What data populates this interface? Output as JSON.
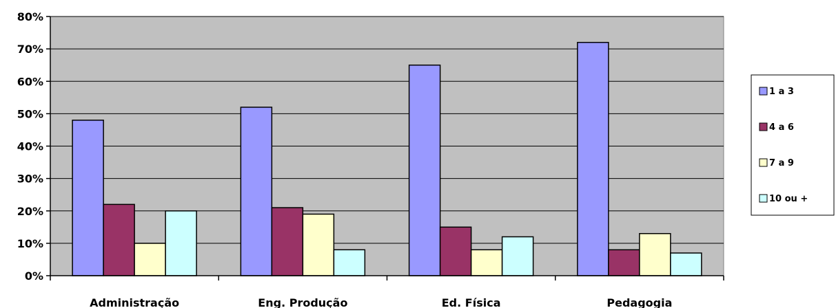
{
  "chart_data": {
    "type": "bar",
    "categories": [
      "Administração",
      "Eng. Produção",
      "Ed. Física",
      "Pedagogia"
    ],
    "series": [
      {
        "name": "1 a 3",
        "color": "#9999ff",
        "values": [
          48,
          52,
          65,
          72
        ]
      },
      {
        "name": "4 a 6",
        "color": "#993366",
        "values": [
          22,
          21,
          15,
          8
        ]
      },
      {
        "name": "7 a 9",
        "color": "#ffffcc",
        "values": [
          10,
          19,
          8,
          13
        ]
      },
      {
        "name": "10 ou +",
        "color": "#ccffff",
        "values": [
          20,
          8,
          12,
          7
        ]
      }
    ],
    "ylim": [
      0,
      80
    ],
    "yticks": [
      0,
      10,
      20,
      30,
      40,
      50,
      60,
      70,
      80
    ],
    "ytick_labels": [
      "0%",
      "10%",
      "20%",
      "30%",
      "40%",
      "50%",
      "60%",
      "70%",
      "80%"
    ],
    "grid": true,
    "plot_background": "#c0c0c0",
    "legend_position": "right",
    "title": "",
    "xlabel": "",
    "ylabel": ""
  }
}
